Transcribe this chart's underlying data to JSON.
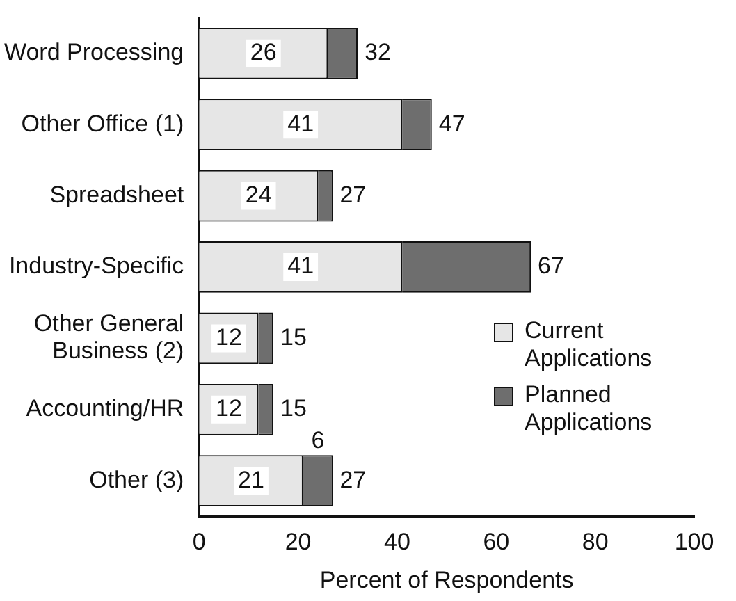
{
  "chart_data": {
    "type": "bar",
    "orientation": "horizontal",
    "stacked": true,
    "xlabel": "Percent of Respondents",
    "categories": [
      "Word Processing",
      "Other Office (1)",
      "Spreadsheet",
      "Industry-Specific",
      "Other General Business (2)",
      "Accounting/HR",
      "Other (3)"
    ],
    "series": [
      {
        "name": "Current Applications",
        "color": "#e6e6e6",
        "values": [
          26,
          41,
          24,
          41,
          12,
          12,
          21
        ],
        "value_labels": [
          "26",
          "41",
          "24",
          "41",
          "12",
          "12",
          "21"
        ]
      },
      {
        "name": "Planned Applications",
        "color": "#6e6e6e",
        "values": [
          6,
          6,
          3,
          26,
          3,
          3,
          6
        ],
        "value_labels": [
          null,
          null,
          null,
          null,
          null,
          null,
          "6"
        ]
      }
    ],
    "totals": [
      "32",
      "47",
      "27",
      "67",
      "15",
      "15",
      "27"
    ],
    "xlim": [
      0,
      100
    ],
    "xticks": [
      0,
      20,
      40,
      60,
      80,
      100
    ],
    "grid": false,
    "legend": "right"
  }
}
